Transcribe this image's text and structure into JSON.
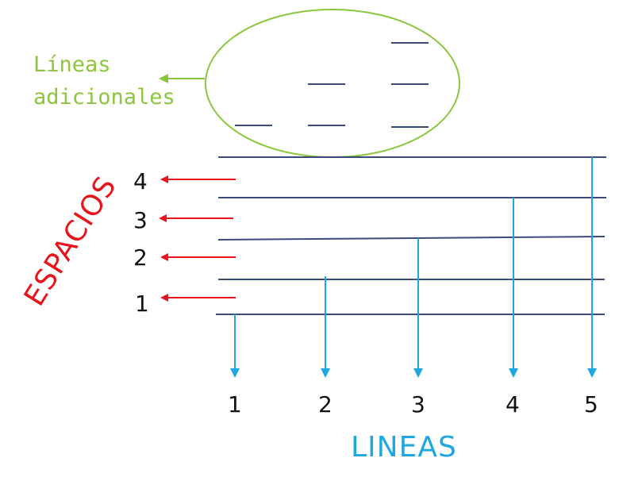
{
  "ledger_label": {
    "line1": "Líneas",
    "line2": "adicionales"
  },
  "spaces_title": "ESPACIOS",
  "lines_title": "LINEAS",
  "space_numbers": [
    "4",
    "3",
    "2",
    "1"
  ],
  "line_numbers": [
    "1",
    "2",
    "3",
    "4",
    "5"
  ],
  "colors": {
    "staff": "#3a4a7a",
    "red_arrows": "#e8141c",
    "blue_arrows": "#1fa8e0",
    "green": "#8cc63f",
    "text": "#111111"
  }
}
